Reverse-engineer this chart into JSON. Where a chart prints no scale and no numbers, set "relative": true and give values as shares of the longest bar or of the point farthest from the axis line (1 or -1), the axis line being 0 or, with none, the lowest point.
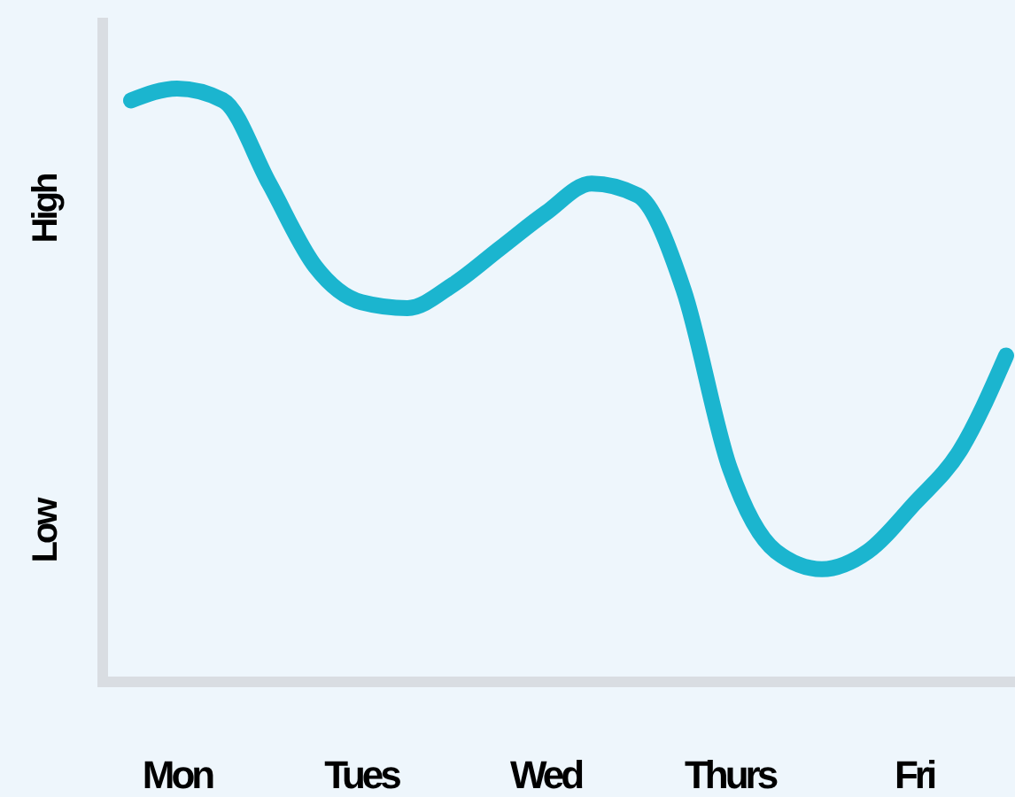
{
  "chart_data": {
    "type": "line",
    "relative": true,
    "categories": [
      null,
      "Mon",
      null,
      null,
      null,
      "Tues",
      null,
      null,
      null,
      "Wed",
      null,
      null,
      null,
      "Thurs",
      null,
      null,
      null,
      "Fri",
      null,
      null
    ],
    "annotations": [
      "High",
      "Low"
    ],
    "series": [
      {
        "color": "#1bb5cf",
        "values": [
          0.98,
          1,
          0.98,
          0.84,
          0.7,
          0.64,
          0.63,
          0.67,
          0.73,
          0.79,
          0.84,
          0.82,
          0.66,
          0.36,
          0.22,
          0.19,
          0.22,
          0.3,
          0.39,
          0.55
        ]
      }
    ],
    "marker": "none",
    "line_style": "solid"
  }
}
